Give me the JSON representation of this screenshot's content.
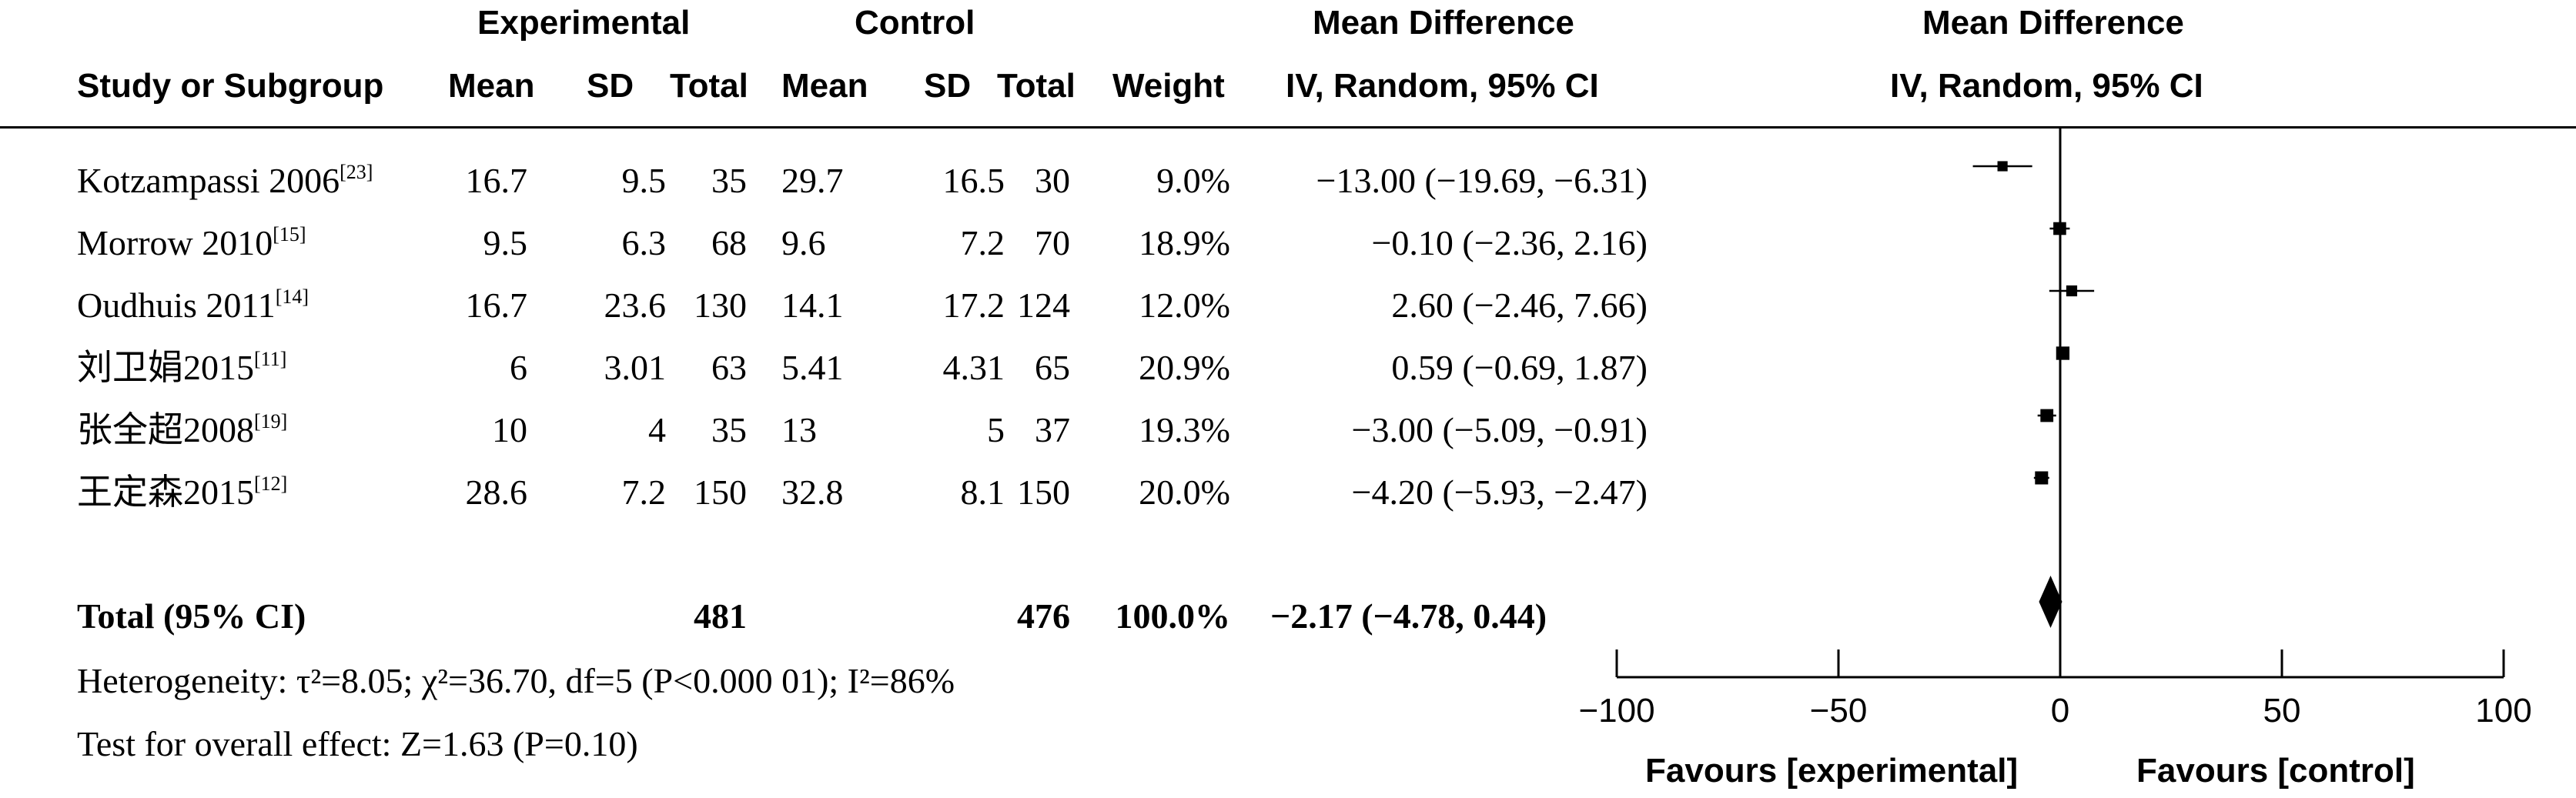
{
  "header": {
    "experimental": "Experimental",
    "control": "Control",
    "mean_difference": "Mean Difference",
    "mean_difference_plot": "Mean Difference",
    "study": "Study or Subgroup",
    "mean": "Mean",
    "sd": "SD",
    "total": "Total",
    "weight": "Weight",
    "method": "IV, Random, 95% CI",
    "method_plot": "IV, Random, 95% CI"
  },
  "studies": [
    {
      "name": "Kotzampassi 2006",
      "ref": "[23]",
      "exp_mean": "16.7",
      "exp_sd": "9.5",
      "exp_total": "35",
      "ctl_mean": "29.7",
      "ctl_sd": "16.5",
      "ctl_total": "30",
      "weight": "9.0%",
      "ci_text": "−13.00 (−19.69, −6.31)"
    },
    {
      "name": "Morrow 2010",
      "ref": "[15]",
      "exp_mean": "9.5",
      "exp_sd": "6.3",
      "exp_total": "68",
      "ctl_mean": "9.6",
      "ctl_sd": "7.2",
      "ctl_total": "70",
      "weight": "18.9%",
      "ci_text": "−0.10 (−2.36, 2.16)"
    },
    {
      "name": "Oudhuis 2011",
      "ref": "[14]",
      "exp_mean": "16.7",
      "exp_sd": "23.6",
      "exp_total": "130",
      "ctl_mean": "14.1",
      "ctl_sd": "17.2",
      "ctl_total": "124",
      "weight": "12.0%",
      "ci_text": "2.60 (−2.46, 7.66)"
    },
    {
      "name": "刘卫娟2015",
      "ref": "[11]",
      "exp_mean": "6",
      "exp_sd": "3.01",
      "exp_total": "63",
      "ctl_mean": "5.41",
      "ctl_sd": "4.31",
      "ctl_total": "65",
      "weight": "20.9%",
      "ci_text": "0.59 (−0.69, 1.87)"
    },
    {
      "name": "张全超2008",
      "ref": "[19]",
      "exp_mean": "10",
      "exp_sd": "4",
      "exp_total": "35",
      "ctl_mean": "13",
      "ctl_sd": "5",
      "ctl_total": "37",
      "weight": "19.3%",
      "ci_text": "−3.00 (−5.09, −0.91)"
    },
    {
      "name": "王定森2015",
      "ref": "[12]",
      "exp_mean": "28.6",
      "exp_sd": "7.2",
      "exp_total": "150",
      "ctl_mean": "32.8",
      "ctl_sd": "8.1",
      "ctl_total": "150",
      "weight": "20.0%",
      "ci_text": "−4.20 (−5.93, −2.47)"
    }
  ],
  "total_row": {
    "label": "Total (95% CI)",
    "exp_total": "481",
    "ctl_total": "476",
    "weight": "100.0%",
    "ci_text": "−2.17 (−4.78, 0.44)"
  },
  "footer": {
    "heterogeneity": "Heterogeneity: τ²=8.05; χ²=36.70, df=5 (P<0.000 01); I²=86%",
    "overall": "Test for overall effect: Z=1.63 (P=0.10)",
    "favours_left": "Favours [experimental]",
    "favours_right": "Favours [control]"
  },
  "chart_data": {
    "type": "forest",
    "xlim": [
      -100,
      100
    ],
    "ticks": [
      -100,
      -50,
      0,
      50,
      100
    ],
    "tick_labels": [
      "−100",
      "−50",
      "0",
      "50",
      "100"
    ],
    "null_line": 0,
    "points": [
      {
        "estimate": -13.0,
        "lower": -19.69,
        "upper": -6.31,
        "weight": 9.0
      },
      {
        "estimate": -0.1,
        "lower": -2.36,
        "upper": 2.16,
        "weight": 18.9
      },
      {
        "estimate": 2.6,
        "lower": -2.46,
        "upper": 7.66,
        "weight": 12.0
      },
      {
        "estimate": 0.59,
        "lower": -0.69,
        "upper": 1.87,
        "weight": 20.9
      },
      {
        "estimate": -3.0,
        "lower": -5.09,
        "upper": -0.91,
        "weight": 19.3
      },
      {
        "estimate": -4.2,
        "lower": -5.93,
        "upper": -2.47,
        "weight": 20.0
      }
    ],
    "pooled": {
      "estimate": -2.17,
      "lower": -4.78,
      "upper": 0.44
    }
  }
}
